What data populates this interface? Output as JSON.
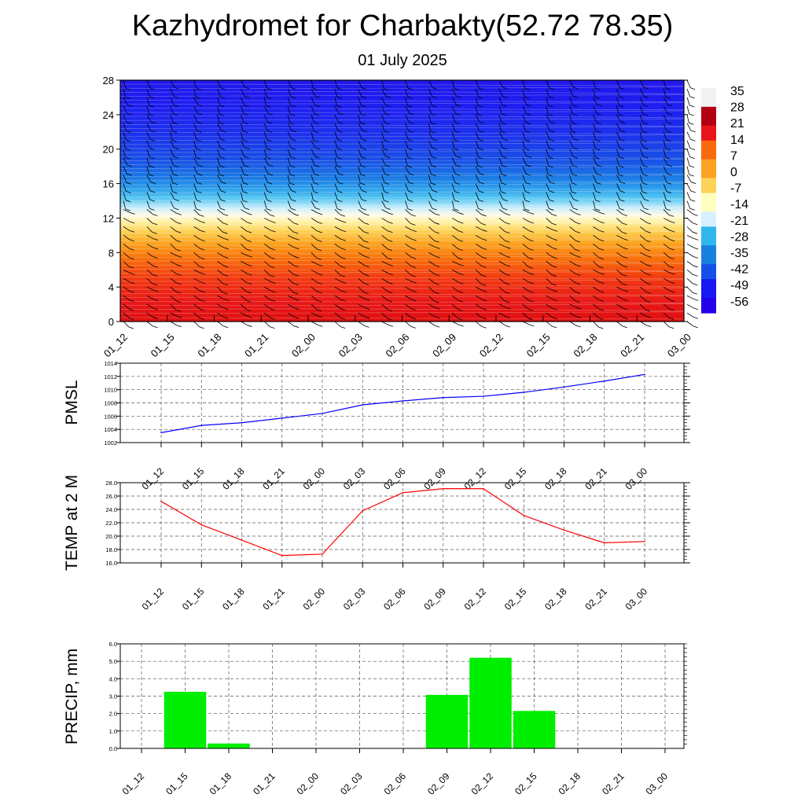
{
  "title": "Kazhydromet for Charbakty(52.72 78.35)",
  "subtitle": "01 July 2025",
  "time_labels": [
    "01_12",
    "01_15",
    "01_18",
    "01_21",
    "02_00",
    "02_03",
    "02_06",
    "02_09",
    "02_12",
    "02_15",
    "02_18",
    "02_21",
    "03_00"
  ],
  "chart_data": [
    {
      "type": "heatmap",
      "name": "",
      "x": [
        "01_12",
        "01_15",
        "01_18",
        "01_21",
        "02_00",
        "02_03",
        "02_06",
        "02_09",
        "02_12",
        "02_15",
        "02_18",
        "02_21",
        "03_00"
      ],
      "yticks": [
        0,
        4,
        8,
        12,
        16,
        20,
        24,
        28
      ],
      "ylim": [
        0,
        28
      ],
      "colorbar_labels": [
        "35",
        "28",
        "21",
        "14",
        "7",
        "0",
        "-7",
        "-14",
        "-21",
        "-28",
        "-35",
        "-42",
        "-49",
        "-56"
      ],
      "colorbar_colors": [
        "#f2f2f2",
        "#b20012",
        "#e8151c",
        "#f86a0c",
        "#fca222",
        "#fdd25a",
        "#ffffc0",
        "#d6f0ff",
        "#30b8ee",
        "#1a80e0",
        "#1450e8",
        "#1818f0",
        "#2400e8",
        "#8040e8"
      ],
      "description_colors": {
        "high_levels": "#1e1ef0",
        "mid_levels": "#fffae0",
        "low_levels": "#e81414"
      },
      "wind_barbs": true
    },
    {
      "type": "line",
      "ylabel": "PMSL",
      "x": [
        "01_12",
        "01_15",
        "01_18",
        "01_21",
        "02_00",
        "02_03",
        "02_06",
        "02_09",
        "02_12",
        "02_15",
        "02_18",
        "02_21",
        "03_00"
      ],
      "series": [
        {
          "values": [
            1003.5,
            1004.6,
            1005.0,
            1005.7,
            1006.4,
            1007.7,
            1008.3,
            1008.8,
            1009.0,
            1009.6,
            1010.4,
            1011.3,
            1012.3
          ],
          "color": "#0000ff"
        }
      ],
      "yticks": [
        "1002",
        "1004",
        "1006",
        "1008",
        "1010",
        "1012",
        "1014"
      ],
      "ylim": [
        1002,
        1014
      ],
      "grid": true
    },
    {
      "type": "line",
      "ylabel": "TEMP at 2 M",
      "x": [
        "01_12",
        "01_15",
        "01_18",
        "01_21",
        "02_00",
        "02_03",
        "02_06",
        "02_09",
        "02_12",
        "02_15",
        "02_18",
        "02_21",
        "03_00"
      ],
      "series": [
        {
          "values": [
            25.2,
            21.7,
            19.4,
            17.1,
            17.3,
            23.8,
            26.5,
            27.1,
            27.1,
            23.1,
            20.9,
            19.0,
            19.2
          ],
          "color": "#ff0000"
        }
      ],
      "yticks": [
        "16.0",
        "18.0",
        "20.0",
        "22.0",
        "24.0",
        "26.0",
        "28.0"
      ],
      "ylim": [
        16,
        28
      ],
      "grid": true
    },
    {
      "type": "bar",
      "ylabel": "PRECIP, mm",
      "categories": [
        "01_12",
        "01_15",
        "01_18",
        "01_21",
        "02_00",
        "02_03",
        "02_06",
        "02_09",
        "02_12",
        "02_15",
        "02_18",
        "02_21",
        "03_00"
      ],
      "values": [
        0,
        3.25,
        0.28,
        0,
        0,
        0,
        0,
        3.07,
        5.2,
        2.15,
        0,
        0,
        0
      ],
      "color": "#00ee00",
      "yticks": [
        "0.0",
        "1.0",
        "2.0",
        "3.0",
        "4.0",
        "5.0",
        "6.0"
      ],
      "ylim": [
        0,
        6
      ],
      "grid": true
    }
  ]
}
